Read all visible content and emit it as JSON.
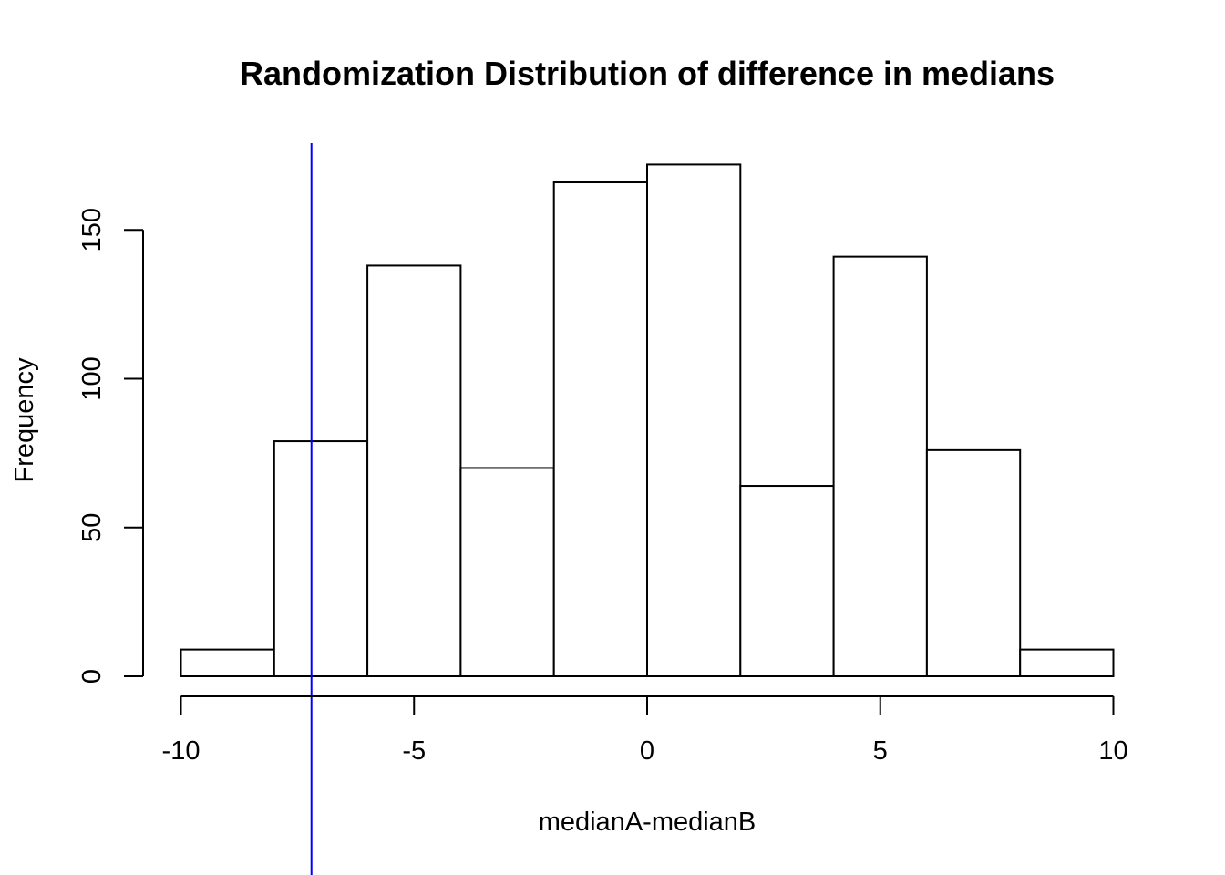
{
  "chart_data": {
    "type": "bar",
    "title": "Randomization Distribution of difference in medians",
    "xlabel": "medianA-medianB",
    "ylabel": "Frequency",
    "bins": [
      {
        "start": -10,
        "end": -8,
        "count": 9
      },
      {
        "start": -8,
        "end": -6,
        "count": 79
      },
      {
        "start": -6,
        "end": -4,
        "count": 138
      },
      {
        "start": -4,
        "end": -2,
        "count": 70
      },
      {
        "start": -2,
        "end": 0,
        "count": 166
      },
      {
        "start": 0,
        "end": 2,
        "count": 172
      },
      {
        "start": 2,
        "end": 4,
        "count": 64
      },
      {
        "start": 4,
        "end": 6,
        "count": 141
      },
      {
        "start": 6,
        "end": 8,
        "count": 76
      },
      {
        "start": 8,
        "end": 10,
        "count": 9
      }
    ],
    "xlim": [
      -10,
      10
    ],
    "ylim": [
      0,
      180
    ],
    "xticks": [
      -10,
      -5,
      0,
      5,
      10
    ],
    "yticks": [
      0,
      50,
      100,
      150
    ],
    "reference_line": {
      "x": -7.2,
      "color": "#0000ff"
    },
    "bar_fill": "#ffffff",
    "bar_stroke": "#000000",
    "grid": false,
    "legend": "none"
  }
}
